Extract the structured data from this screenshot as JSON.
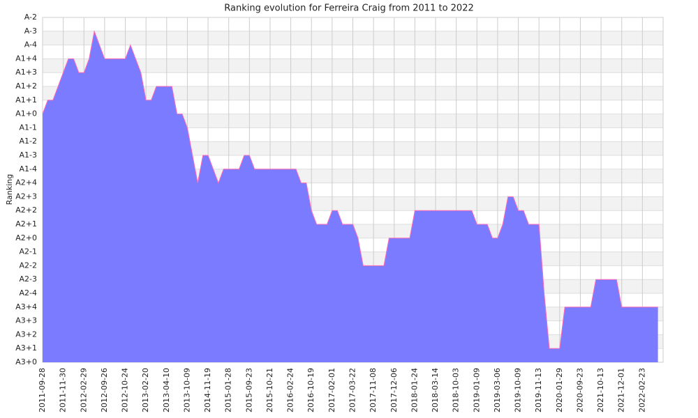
{
  "chart_data": {
    "type": "area",
    "title": "Ranking evolution for Ferreira Craig from 2011 to 2022",
    "y_label": "Ranking",
    "categories": [
      "2011-09-28",
      null,
      null,
      null,
      "2011-11-30",
      null,
      null,
      null,
      "2012-02-29",
      null,
      null,
      null,
      "2012-09-26",
      null,
      null,
      null,
      "2012-10-24",
      null,
      null,
      null,
      "2013-02-20",
      null,
      null,
      null,
      "2013-04-10",
      null,
      null,
      null,
      "2013-10-09",
      null,
      null,
      null,
      "2014-11-19",
      null,
      null,
      null,
      "2015-01-28",
      null,
      null,
      null,
      "2015-09-23",
      null,
      null,
      null,
      "2015-10-21",
      null,
      null,
      null,
      "2016-02-24",
      null,
      null,
      null,
      "2016-10-19",
      null,
      null,
      null,
      "2017-02-01",
      null,
      null,
      null,
      "2017-03-22",
      null,
      null,
      null,
      "2017-11-08",
      null,
      null,
      null,
      "2017-12-06",
      null,
      null,
      null,
      "2018-01-24",
      null,
      null,
      null,
      "2018-03-14",
      null,
      null,
      null,
      "2018-10-03",
      null,
      null,
      null,
      "2019-01-09",
      null,
      null,
      null,
      "2019-03-06",
      null,
      null,
      null,
      "2019-10-09",
      null,
      null,
      null,
      "2019-11-13",
      null,
      null,
      null,
      "2020-01-29",
      null,
      null,
      null,
      "2020-09-23",
      null,
      null,
      null,
      "2021-10-13",
      null,
      null,
      null,
      "2021-12-01",
      null,
      null,
      null,
      "2022-02-23",
      null,
      null,
      null
    ],
    "values": [
      18,
      19,
      19,
      20,
      21,
      22,
      22,
      21,
      21,
      22,
      24,
      23,
      22,
      22,
      22,
      22,
      22,
      23,
      22,
      21,
      19,
      19,
      20,
      20,
      20,
      20,
      18,
      18,
      17,
      15,
      13,
      15,
      15,
      14,
      13,
      14,
      14,
      14,
      14,
      15,
      15,
      14,
      14,
      14,
      14,
      14,
      14,
      14,
      14,
      14,
      13,
      13,
      11,
      10,
      10,
      10,
      11,
      11,
      10,
      10,
      10,
      9,
      7,
      7,
      7,
      7,
      7,
      9,
      9,
      9,
      9,
      9,
      11,
      11,
      11,
      11,
      11,
      11,
      11,
      11,
      11,
      11,
      11,
      11,
      10,
      10,
      10,
      9,
      9,
      10,
      12,
      12,
      11,
      11,
      10,
      10,
      10,
      5,
      1,
      1,
      1,
      4,
      4,
      4,
      4,
      4,
      4,
      6,
      6,
      6,
      6,
      6,
      4,
      4,
      4,
      4,
      4,
      4,
      4,
      4
    ],
    "color": "#7b7bff",
    "line_color": "#ff6bb5",
    "ylim": [
      0,
      25
    ],
    "yticks": [
      {
        "value": 0,
        "label": "A3+0"
      },
      {
        "value": 1,
        "label": "A3+1"
      },
      {
        "value": 2,
        "label": "A3+2"
      },
      {
        "value": 3,
        "label": "A3+3"
      },
      {
        "value": 4,
        "label": "A3+4"
      },
      {
        "value": 5,
        "label": "A2-4"
      },
      {
        "value": 6,
        "label": "A2-3"
      },
      {
        "value": 7,
        "label": "A2-2"
      },
      {
        "value": 8,
        "label": "A2-1"
      },
      {
        "value": 9,
        "label": "A2+0"
      },
      {
        "value": 10,
        "label": "A2+1"
      },
      {
        "value": 11,
        "label": "A2+2"
      },
      {
        "value": 12,
        "label": "A2+3"
      },
      {
        "value": 13,
        "label": "A2+4"
      },
      {
        "value": 14,
        "label": "A1-4"
      },
      {
        "value": 15,
        "label": "A1-3"
      },
      {
        "value": 16,
        "label": "A1-2"
      },
      {
        "value": 17,
        "label": "A1-1"
      },
      {
        "value": 18,
        "label": "A1+0"
      },
      {
        "value": 19,
        "label": "A1+1"
      },
      {
        "value": 20,
        "label": "A1+2"
      },
      {
        "value": 21,
        "label": "A1+3"
      },
      {
        "value": 22,
        "label": "A1+4"
      },
      {
        "value": 23,
        "label": "A-4"
      },
      {
        "value": 24,
        "label": "A-3"
      },
      {
        "value": 25,
        "label": "A-2"
      }
    ],
    "grid": true
  }
}
